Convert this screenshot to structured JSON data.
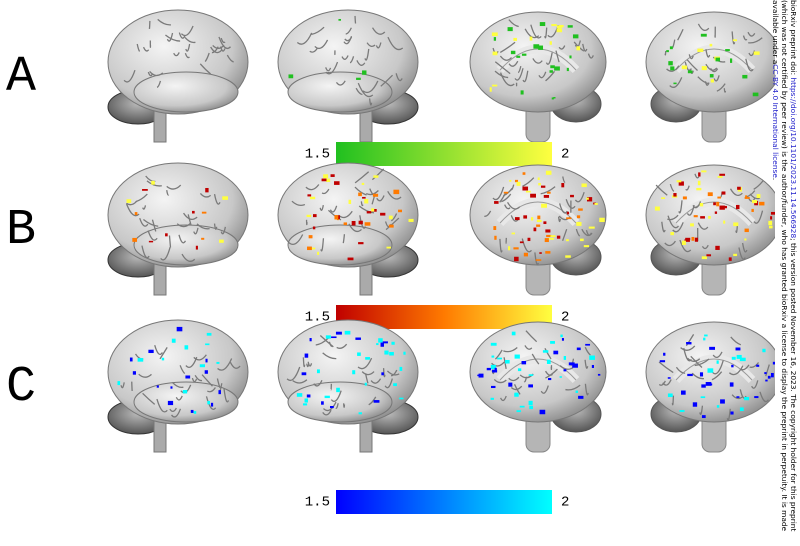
{
  "panels": [
    {
      "label": "A",
      "colorbar": {
        "min": 1.5,
        "max": 2,
        "colors": [
          "#20c020",
          "#ffff40"
        ]
      }
    },
    {
      "label": "B",
      "colorbar": {
        "min": 1.5,
        "max": 2,
        "colors": [
          "#c00000",
          "#ff7a00",
          "#ffff40"
        ]
      }
    },
    {
      "label": "C",
      "colorbar": {
        "min": 1.5,
        "max": 2,
        "colors": [
          "#0000ff",
          "#00ffff"
        ]
      }
    }
  ],
  "notice": {
    "lines": [
      [
        {
          "text": "bioRxiv preprint doi: ",
          "link": false
        },
        {
          "text": "https://doi.org/10.1101/2023.11.14.566928",
          "link": true
        },
        {
          "text": "; this version posted November 16, 2023. The copyright holder for this preprint",
          "link": false
        }
      ],
      [
        {
          "text": "(which was not certified by peer review) is the author/funder, who has granted bioRxiv a license to display the preprint in perpetuity. It is made",
          "link": false
        }
      ],
      [
        {
          "text": "available under a",
          "link": false
        },
        {
          "text": "CC-BY 4.0 International license",
          "link": true
        },
        {
          "text": ".",
          "link": false
        }
      ]
    ]
  }
}
